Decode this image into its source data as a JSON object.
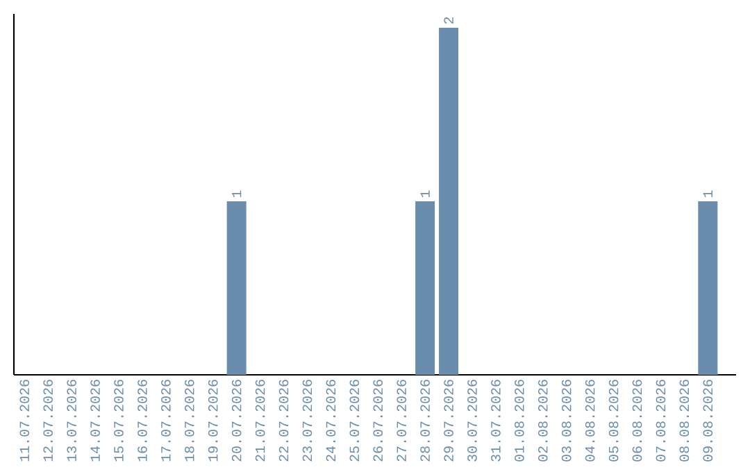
{
  "chart_data": {
    "type": "bar",
    "categories": [
      "11.07.2026",
      "12.07.2026",
      "13.07.2026",
      "14.07.2026",
      "15.07.2026",
      "16.07.2026",
      "17.07.2026",
      "18.07.2026",
      "19.07.2026",
      "20.07.2026",
      "21.07.2026",
      "22.07.2026",
      "23.07.2026",
      "24.07.2026",
      "25.07.2026",
      "26.07.2026",
      "27.07.2026",
      "28.07.2026",
      "29.07.2026",
      "30.07.2026",
      "31.07.2026",
      "01.08.2026",
      "02.08.2026",
      "03.08.2026",
      "04.08.2026",
      "05.08.2026",
      "06.08.2026",
      "07.08.2026",
      "08.08.2026",
      "09.08.2026"
    ],
    "values": [
      0,
      0,
      0,
      0,
      0,
      0,
      0,
      0,
      0,
      1,
      0,
      0,
      0,
      0,
      0,
      0,
      0,
      1,
      2,
      0,
      0,
      0,
      0,
      0,
      0,
      0,
      0,
      0,
      0,
      1
    ],
    "value_labels": [
      null,
      null,
      null,
      null,
      null,
      null,
      null,
      null,
      null,
      "1",
      null,
      null,
      null,
      null,
      null,
      null,
      null,
      "1",
      "2",
      null,
      null,
      null,
      null,
      null,
      null,
      null,
      null,
      null,
      null,
      "1"
    ],
    "color": "#6a8cad"
  }
}
